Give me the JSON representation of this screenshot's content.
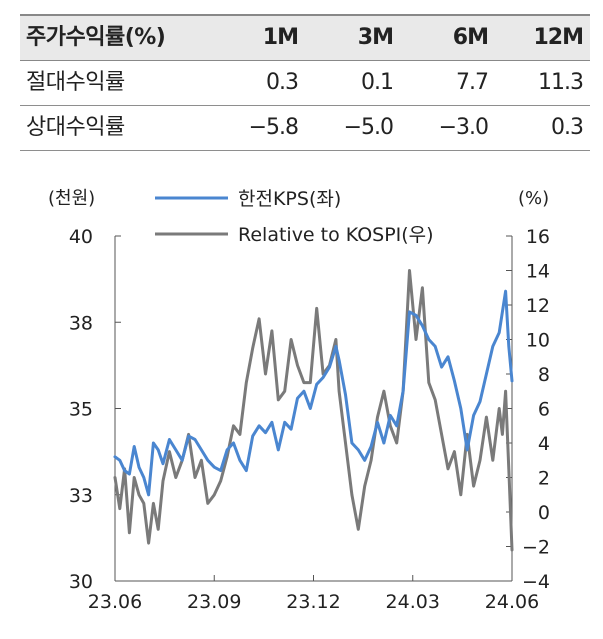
{
  "table": {
    "header": [
      "주가수익률(%)",
      "1M",
      "3M",
      "6M",
      "12M"
    ],
    "rows": [
      {
        "label": "절대수익률",
        "values": [
          "0.3",
          "0.1",
          "7.7",
          "11.3"
        ]
      },
      {
        "label": "상대수익률",
        "values": [
          "−5.8",
          "−5.0",
          "−3.0",
          "0.3"
        ]
      }
    ]
  },
  "colors": {
    "series1": "#4a86d0",
    "series2": "#7a7a7a",
    "axis": "#555555"
  },
  "chart_data": {
    "type": "line",
    "left_unit": "(천원)",
    "right_unit": "(%)",
    "x_tick_labels": [
      "23.06",
      "23.09",
      "23.12",
      "24.03",
      "24.06"
    ],
    "y_left_ticks": [
      "40",
      "38",
      "35",
      "33",
      "30"
    ],
    "y_right_ticks": [
      "16",
      "14",
      "12",
      "10",
      "8",
      "6",
      "4",
      "2",
      "0",
      "−2",
      "−4"
    ],
    "y_left_range": [
      30,
      40
    ],
    "y_right_range": [
      -4,
      16
    ],
    "x_range": [
      0,
      12.4
    ],
    "series": [
      {
        "name": "한전KPS(좌)",
        "axis": "left",
        "points": [
          [
            0.0,
            33.6
          ],
          [
            0.15,
            33.5
          ],
          [
            0.3,
            33.2
          ],
          [
            0.45,
            33.1
          ],
          [
            0.6,
            33.9
          ],
          [
            0.75,
            33.3
          ],
          [
            0.9,
            33.0
          ],
          [
            1.05,
            32.5
          ],
          [
            1.2,
            34.0
          ],
          [
            1.35,
            33.8
          ],
          [
            1.5,
            33.4
          ],
          [
            1.7,
            34.1
          ],
          [
            1.9,
            33.8
          ],
          [
            2.1,
            33.5
          ],
          [
            2.3,
            34.2
          ],
          [
            2.5,
            34.1
          ],
          [
            2.7,
            33.8
          ],
          [
            2.9,
            33.5
          ],
          [
            3.1,
            33.3
          ],
          [
            3.3,
            33.2
          ],
          [
            3.5,
            33.8
          ],
          [
            3.7,
            34.0
          ],
          [
            3.9,
            33.5
          ],
          [
            4.1,
            33.2
          ],
          [
            4.3,
            34.2
          ],
          [
            4.5,
            34.5
          ],
          [
            4.7,
            34.3
          ],
          [
            4.9,
            34.6
          ],
          [
            5.1,
            33.8
          ],
          [
            5.3,
            34.6
          ],
          [
            5.5,
            34.4
          ],
          [
            5.7,
            35.3
          ],
          [
            5.9,
            35.5
          ],
          [
            6.1,
            35.0
          ],
          [
            6.3,
            35.7
          ],
          [
            6.5,
            35.9
          ],
          [
            6.7,
            36.2
          ],
          [
            6.9,
            36.8
          ],
          [
            7.0,
            36.4
          ],
          [
            7.2,
            35.4
          ],
          [
            7.4,
            34.0
          ],
          [
            7.6,
            33.8
          ],
          [
            7.8,
            33.5
          ],
          [
            8.0,
            33.9
          ],
          [
            8.2,
            34.6
          ],
          [
            8.4,
            34.0
          ],
          [
            8.6,
            34.8
          ],
          [
            8.8,
            34.5
          ],
          [
            9.0,
            35.5
          ],
          [
            9.2,
            37.8
          ],
          [
            9.4,
            37.7
          ],
          [
            9.6,
            37.4
          ],
          [
            9.8,
            37.0
          ],
          [
            10.0,
            36.8
          ],
          [
            10.2,
            36.2
          ],
          [
            10.4,
            36.5
          ],
          [
            10.6,
            35.8
          ],
          [
            10.8,
            35.0
          ],
          [
            11.0,
            33.8
          ],
          [
            11.2,
            34.8
          ],
          [
            11.4,
            35.2
          ],
          [
            11.6,
            36.0
          ],
          [
            11.8,
            36.8
          ],
          [
            12.0,
            37.2
          ],
          [
            12.1,
            37.8
          ],
          [
            12.2,
            38.4
          ],
          [
            12.3,
            36.8
          ],
          [
            12.4,
            35.8
          ]
        ]
      },
      {
        "name": "Relative to KOSPI(우)",
        "axis": "right",
        "points": [
          [
            0.0,
            2.0
          ],
          [
            0.15,
            0.2
          ],
          [
            0.3,
            2.5
          ],
          [
            0.45,
            -1.2
          ],
          [
            0.6,
            2.0
          ],
          [
            0.75,
            1.0
          ],
          [
            0.9,
            0.5
          ],
          [
            1.05,
            -1.8
          ],
          [
            1.2,
            0.5
          ],
          [
            1.35,
            -1.0
          ],
          [
            1.5,
            1.8
          ],
          [
            1.7,
            3.5
          ],
          [
            1.9,
            2.0
          ],
          [
            2.1,
            3.0
          ],
          [
            2.3,
            4.5
          ],
          [
            2.5,
            2.0
          ],
          [
            2.7,
            3.0
          ],
          [
            2.9,
            0.5
          ],
          [
            3.1,
            1.0
          ],
          [
            3.3,
            1.8
          ],
          [
            3.5,
            3.2
          ],
          [
            3.7,
            5.0
          ],
          [
            3.9,
            4.5
          ],
          [
            4.1,
            7.5
          ],
          [
            4.3,
            9.5
          ],
          [
            4.5,
            11.2
          ],
          [
            4.7,
            8.0
          ],
          [
            4.9,
            10.5
          ],
          [
            5.1,
            6.5
          ],
          [
            5.3,
            7.0
          ],
          [
            5.5,
            10.0
          ],
          [
            5.7,
            8.5
          ],
          [
            5.9,
            7.5
          ],
          [
            6.1,
            7.5
          ],
          [
            6.3,
            11.8
          ],
          [
            6.5,
            8.0
          ],
          [
            6.7,
            8.5
          ],
          [
            6.9,
            10.0
          ],
          [
            7.0,
            7.0
          ],
          [
            7.2,
            4.0
          ],
          [
            7.4,
            1.0
          ],
          [
            7.6,
            -1.0
          ],
          [
            7.8,
            1.5
          ],
          [
            8.0,
            3.0
          ],
          [
            8.2,
            5.5
          ],
          [
            8.4,
            7.0
          ],
          [
            8.6,
            5.0
          ],
          [
            8.8,
            4.0
          ],
          [
            9.0,
            7.0
          ],
          [
            9.2,
            14.0
          ],
          [
            9.4,
            10.0
          ],
          [
            9.6,
            13.0
          ],
          [
            9.8,
            7.5
          ],
          [
            10.0,
            6.5
          ],
          [
            10.2,
            4.5
          ],
          [
            10.4,
            2.5
          ],
          [
            10.6,
            3.5
          ],
          [
            10.8,
            1.0
          ],
          [
            11.0,
            4.5
          ],
          [
            11.2,
            1.5
          ],
          [
            11.4,
            3.0
          ],
          [
            11.6,
            5.5
          ],
          [
            11.8,
            3.0
          ],
          [
            12.0,
            6.0
          ],
          [
            12.1,
            4.5
          ],
          [
            12.2,
            7.0
          ],
          [
            12.3,
            2.5
          ],
          [
            12.4,
            -2.2
          ]
        ]
      }
    ]
  }
}
